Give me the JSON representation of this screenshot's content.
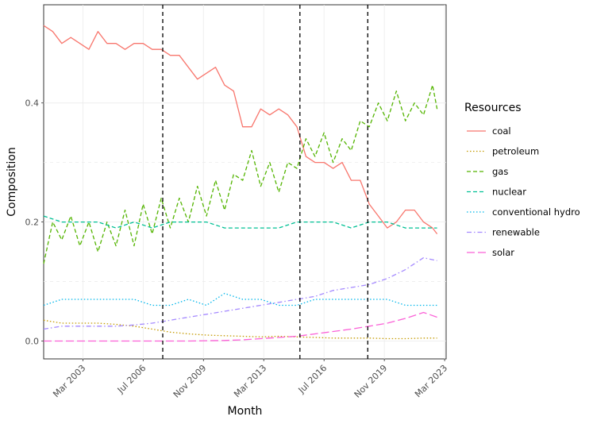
{
  "chart_data": {
    "type": "line",
    "xlabel": "Month",
    "ylabel": "Composition",
    "xlim": [
      "2001-01",
      "2023-04"
    ],
    "ylim": [
      -0.03,
      0.565
    ],
    "grid": true,
    "legend_position": "right",
    "legend_title": "Resources",
    "x_ticks": [
      {
        "date": "2003-03",
        "label": "Mar 2003"
      },
      {
        "date": "2006-07",
        "label": "Jul 2006"
      },
      {
        "date": "2009-11",
        "label": "Nov 2009"
      },
      {
        "date": "2013-03",
        "label": "Mar 2013"
      },
      {
        "date": "2016-07",
        "label": "Jul 2016"
      },
      {
        "date": "2019-11",
        "label": "Nov 2019"
      },
      {
        "date": "2023-03",
        "label": "Mar 2023"
      }
    ],
    "y_ticks": [
      {
        "value": 0.0,
        "label": "0.0"
      },
      {
        "value": 0.2,
        "label": "0.2"
      },
      {
        "value": 0.4,
        "label": "0.4"
      }
    ],
    "vlines": [
      "2007-08",
      "2015-03",
      "2018-12"
    ],
    "series": [
      {
        "name": "coal",
        "color": "#F8766D",
        "dash": "solid",
        "points": [
          [
            "2001-01",
            0.53
          ],
          [
            "2001-07",
            0.52
          ],
          [
            "2002-01",
            0.5
          ],
          [
            "2002-07",
            0.51
          ],
          [
            "2003-01",
            0.5
          ],
          [
            "2003-07",
            0.49
          ],
          [
            "2004-01",
            0.52
          ],
          [
            "2004-07",
            0.5
          ],
          [
            "2005-01",
            0.5
          ],
          [
            "2005-07",
            0.49
          ],
          [
            "2006-01",
            0.5
          ],
          [
            "2006-07",
            0.5
          ],
          [
            "2007-01",
            0.49
          ],
          [
            "2007-07",
            0.49
          ],
          [
            "2008-01",
            0.48
          ],
          [
            "2008-07",
            0.48
          ],
          [
            "2009-01",
            0.46
          ],
          [
            "2009-07",
            0.44
          ],
          [
            "2010-01",
            0.45
          ],
          [
            "2010-07",
            0.46
          ],
          [
            "2011-01",
            0.43
          ],
          [
            "2011-07",
            0.42
          ],
          [
            "2012-01",
            0.36
          ],
          [
            "2012-07",
            0.36
          ],
          [
            "2013-01",
            0.39
          ],
          [
            "2013-07",
            0.38
          ],
          [
            "2014-01",
            0.39
          ],
          [
            "2014-07",
            0.38
          ],
          [
            "2015-01",
            0.36
          ],
          [
            "2015-07",
            0.31
          ],
          [
            "2016-01",
            0.3
          ],
          [
            "2016-07",
            0.3
          ],
          [
            "2017-01",
            0.29
          ],
          [
            "2017-07",
            0.3
          ],
          [
            "2018-01",
            0.27
          ],
          [
            "2018-07",
            0.27
          ],
          [
            "2019-01",
            0.23
          ],
          [
            "2019-07",
            0.21
          ],
          [
            "2020-01",
            0.19
          ],
          [
            "2020-07",
            0.2
          ],
          [
            "2021-01",
            0.22
          ],
          [
            "2021-07",
            0.22
          ],
          [
            "2022-01",
            0.2
          ],
          [
            "2022-07",
            0.19
          ],
          [
            "2022-10",
            0.18
          ]
        ]
      },
      {
        "name": "petroleum",
        "color": "#C49A00",
        "dash": "dotted",
        "points": [
          [
            "2001-01",
            0.035
          ],
          [
            "2002-01",
            0.03
          ],
          [
            "2003-01",
            0.03
          ],
          [
            "2004-01",
            0.03
          ],
          [
            "2005-01",
            0.028
          ],
          [
            "2006-01",
            0.025
          ],
          [
            "2007-01",
            0.02
          ],
          [
            "2008-01",
            0.015
          ],
          [
            "2009-01",
            0.012
          ],
          [
            "2010-01",
            0.01
          ],
          [
            "2011-01",
            0.009
          ],
          [
            "2012-01",
            0.008
          ],
          [
            "2013-01",
            0.007
          ],
          [
            "2014-01",
            0.008
          ],
          [
            "2015-01",
            0.007
          ],
          [
            "2016-01",
            0.006
          ],
          [
            "2017-01",
            0.005
          ],
          [
            "2018-01",
            0.005
          ],
          [
            "2019-01",
            0.005
          ],
          [
            "2020-01",
            0.004
          ],
          [
            "2021-01",
            0.004
          ],
          [
            "2022-01",
            0.005
          ],
          [
            "2022-10",
            0.005
          ]
        ]
      },
      {
        "name": "gas",
        "color": "#53B400",
        "dash": "dashed",
        "points": [
          [
            "2001-01",
            0.13
          ],
          [
            "2001-07",
            0.2
          ],
          [
            "2002-01",
            0.17
          ],
          [
            "2002-07",
            0.21
          ],
          [
            "2003-01",
            0.16
          ],
          [
            "2003-07",
            0.2
          ],
          [
            "2004-01",
            0.15
          ],
          [
            "2004-07",
            0.2
          ],
          [
            "2005-01",
            0.16
          ],
          [
            "2005-07",
            0.22
          ],
          [
            "2006-01",
            0.16
          ],
          [
            "2006-07",
            0.23
          ],
          [
            "2007-01",
            0.18
          ],
          [
            "2007-07",
            0.24
          ],
          [
            "2008-01",
            0.19
          ],
          [
            "2008-07",
            0.24
          ],
          [
            "2009-01",
            0.2
          ],
          [
            "2009-07",
            0.26
          ],
          [
            "2010-01",
            0.21
          ],
          [
            "2010-07",
            0.27
          ],
          [
            "2011-01",
            0.22
          ],
          [
            "2011-07",
            0.28
          ],
          [
            "2012-01",
            0.27
          ],
          [
            "2012-07",
            0.32
          ],
          [
            "2013-01",
            0.26
          ],
          [
            "2013-07",
            0.3
          ],
          [
            "2014-01",
            0.25
          ],
          [
            "2014-07",
            0.3
          ],
          [
            "2015-01",
            0.29
          ],
          [
            "2015-07",
            0.34
          ],
          [
            "2016-01",
            0.31
          ],
          [
            "2016-07",
            0.35
          ],
          [
            "2017-01",
            0.3
          ],
          [
            "2017-07",
            0.34
          ],
          [
            "2018-01",
            0.32
          ],
          [
            "2018-07",
            0.37
          ],
          [
            "2019-01",
            0.36
          ],
          [
            "2019-07",
            0.4
          ],
          [
            "2020-01",
            0.37
          ],
          [
            "2020-07",
            0.42
          ],
          [
            "2021-01",
            0.37
          ],
          [
            "2021-07",
            0.4
          ],
          [
            "2022-01",
            0.38
          ],
          [
            "2022-07",
            0.43
          ],
          [
            "2022-10",
            0.39
          ]
        ]
      },
      {
        "name": "nuclear",
        "color": "#00C094",
        "dash": "dashed",
        "points": [
          [
            "2001-01",
            0.21
          ],
          [
            "2002-01",
            0.2
          ],
          [
            "2003-01",
            0.2
          ],
          [
            "2004-01",
            0.2
          ],
          [
            "2005-01",
            0.19
          ],
          [
            "2006-01",
            0.2
          ],
          [
            "2007-01",
            0.19
          ],
          [
            "2008-01",
            0.2
          ],
          [
            "2009-01",
            0.2
          ],
          [
            "2010-01",
            0.2
          ],
          [
            "2011-01",
            0.19
          ],
          [
            "2012-01",
            0.19
          ],
          [
            "2013-01",
            0.19
          ],
          [
            "2014-01",
            0.19
          ],
          [
            "2015-01",
            0.2
          ],
          [
            "2016-01",
            0.2
          ],
          [
            "2017-01",
            0.2
          ],
          [
            "2018-01",
            0.19
          ],
          [
            "2019-01",
            0.2
          ],
          [
            "2020-01",
            0.2
          ],
          [
            "2021-01",
            0.19
          ],
          [
            "2022-01",
            0.19
          ],
          [
            "2022-10",
            0.19
          ]
        ]
      },
      {
        "name": "conventional hydro",
        "color": "#00B6EB",
        "dash": "dotted",
        "points": [
          [
            "2001-01",
            0.06
          ],
          [
            "2002-01",
            0.07
          ],
          [
            "2003-01",
            0.07
          ],
          [
            "2004-01",
            0.07
          ],
          [
            "2005-01",
            0.07
          ],
          [
            "2006-01",
            0.07
          ],
          [
            "2007-01",
            0.06
          ],
          [
            "2008-01",
            0.06
          ],
          [
            "2009-01",
            0.07
          ],
          [
            "2010-01",
            0.06
          ],
          [
            "2011-01",
            0.08
          ],
          [
            "2012-01",
            0.07
          ],
          [
            "2013-01",
            0.07
          ],
          [
            "2014-01",
            0.06
          ],
          [
            "2015-01",
            0.06
          ],
          [
            "2016-01",
            0.07
          ],
          [
            "2017-01",
            0.07
          ],
          [
            "2018-01",
            0.07
          ],
          [
            "2019-01",
            0.07
          ],
          [
            "2020-01",
            0.07
          ],
          [
            "2021-01",
            0.06
          ],
          [
            "2022-01",
            0.06
          ],
          [
            "2022-10",
            0.06
          ]
        ]
      },
      {
        "name": "renewable",
        "color": "#A58AFF",
        "dash": "dashdot",
        "points": [
          [
            "2001-01",
            0.02
          ],
          [
            "2002-01",
            0.025
          ],
          [
            "2003-01",
            0.025
          ],
          [
            "2004-01",
            0.025
          ],
          [
            "2005-01",
            0.025
          ],
          [
            "2006-01",
            0.027
          ],
          [
            "2007-01",
            0.03
          ],
          [
            "2008-01",
            0.035
          ],
          [
            "2009-01",
            0.04
          ],
          [
            "2010-01",
            0.045
          ],
          [
            "2011-01",
            0.05
          ],
          [
            "2012-01",
            0.055
          ],
          [
            "2013-01",
            0.06
          ],
          [
            "2014-01",
            0.065
          ],
          [
            "2015-01",
            0.07
          ],
          [
            "2016-01",
            0.075
          ],
          [
            "2017-01",
            0.085
          ],
          [
            "2018-01",
            0.09
          ],
          [
            "2019-01",
            0.095
          ],
          [
            "2020-01",
            0.105
          ],
          [
            "2021-01",
            0.12
          ],
          [
            "2022-01",
            0.14
          ],
          [
            "2022-10",
            0.135
          ]
        ]
      },
      {
        "name": "solar",
        "color": "#FB61D7",
        "dash": "longdash",
        "points": [
          [
            "2001-01",
            0.0
          ],
          [
            "2005-01",
            0.0
          ],
          [
            "2009-01",
            0.0
          ],
          [
            "2011-01",
            0.001
          ],
          [
            "2012-01",
            0.002
          ],
          [
            "2013-01",
            0.004
          ],
          [
            "2014-01",
            0.006
          ],
          [
            "2015-01",
            0.008
          ],
          [
            "2016-01",
            0.012
          ],
          [
            "2017-01",
            0.016
          ],
          [
            "2018-01",
            0.02
          ],
          [
            "2019-01",
            0.025
          ],
          [
            "2020-01",
            0.03
          ],
          [
            "2021-01",
            0.038
          ],
          [
            "2022-01",
            0.048
          ],
          [
            "2022-10",
            0.04
          ]
        ]
      }
    ]
  }
}
